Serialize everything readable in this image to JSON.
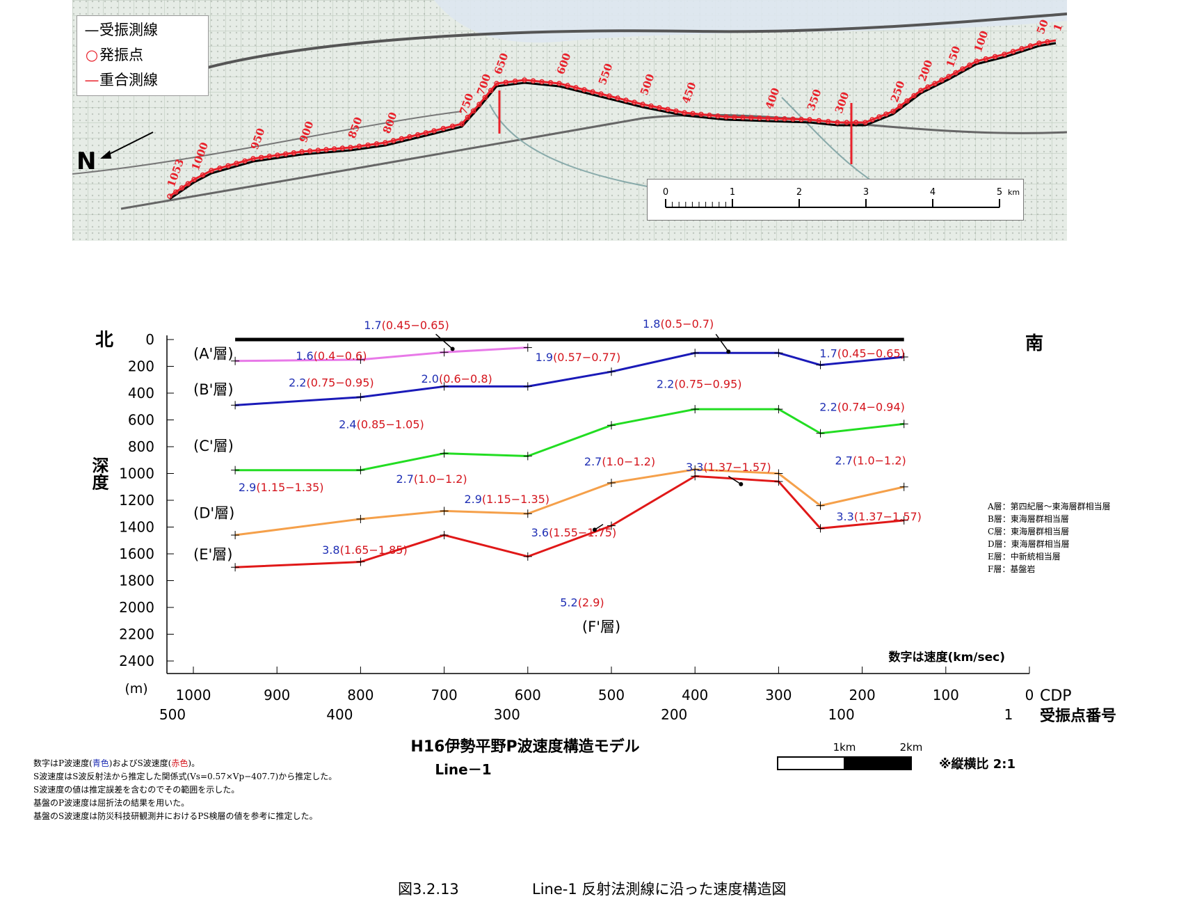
{
  "map": {
    "legend": [
      {
        "symbol": "—",
        "symbol_color": "#000000",
        "label": "受振測線"
      },
      {
        "symbol": "○",
        "symbol_color": "#e8202a",
        "label": "発振点"
      },
      {
        "symbol": "—",
        "symbol_color": "#e8202a",
        "label": "重合測線"
      }
    ],
    "north_label": "N",
    "scale": {
      "ticks": [
        "0",
        "1",
        "2",
        "3",
        "4",
        "5"
      ],
      "unit": "km"
    },
    "cdp_labels": [
      "1053",
      "1000",
      "950",
      "900",
      "850",
      "800",
      "750",
      "700",
      "650",
      "600",
      "550",
      "500",
      "450",
      "400",
      "350",
      "300",
      "250",
      "200",
      "150",
      "100",
      "50",
      "1"
    ]
  },
  "chart_data": {
    "type": "line",
    "title": "H16伊勢平野P波速度構造モデル",
    "subtitle": "Line－1",
    "ylabel": "深度",
    "yunit": "(m)",
    "ylim": [
      0,
      2400
    ],
    "yticks": [
      "0",
      "200",
      "400",
      "600",
      "800",
      "1000",
      "1200",
      "1400",
      "1600",
      "1800",
      "2000",
      "2200",
      "2400"
    ],
    "xlim": [
      1000,
      0
    ],
    "xticks": [
      "1000",
      "900",
      "800",
      "700",
      "600",
      "500",
      "400",
      "300",
      "200",
      "100",
      "0"
    ],
    "xlabel": "CDP",
    "x2ticks": [
      {
        "cdp": 1000,
        "label": "500"
      },
      {
        "cdp": 800,
        "label": "400"
      },
      {
        "cdp": 600,
        "label": "300"
      },
      {
        "cdp": 400,
        "label": "200"
      },
      {
        "cdp": 200,
        "label": "100"
      },
      {
        "cdp": 0,
        "label": "1"
      }
    ],
    "x2label": "受振点番号",
    "north_label": "北",
    "south_label": "南",
    "surface": {
      "x": [
        950,
        150
      ],
      "y": [
        0,
        0
      ],
      "color": "#000000"
    },
    "series": [
      {
        "name": "(A'層)",
        "color": "#e879e8",
        "x": [
          950,
          800,
          700,
          600
        ],
        "y": [
          160,
          150,
          95,
          60
        ]
      },
      {
        "name": "(B'層)",
        "color": "#1a1ab8",
        "x": [
          950,
          800,
          700,
          600,
          500,
          400,
          300,
          250,
          150
        ],
        "y": [
          490,
          430,
          350,
          350,
          240,
          100,
          100,
          190,
          130
        ]
      },
      {
        "name": "(C'層)",
        "color": "#22dd22",
        "x": [
          950,
          800,
          700,
          600,
          500,
          400,
          300,
          250,
          150
        ],
        "y": [
          975,
          975,
          850,
          870,
          640,
          520,
          520,
          700,
          630
        ]
      },
      {
        "name": "(D'層)",
        "color": "#f5a04a",
        "x": [
          950,
          800,
          700,
          600,
          500,
          400,
          300,
          250,
          150
        ],
        "y": [
          1460,
          1340,
          1280,
          1300,
          1070,
          970,
          1000,
          1240,
          1100
        ]
      },
      {
        "name": "(E'層)",
        "color": "#e01818",
        "x": [
          950,
          800,
          700,
          600,
          500,
          400,
          300,
          250,
          150
        ],
        "y": [
          1700,
          1660,
          1460,
          1620,
          1390,
          1020,
          1060,
          1410,
          1350
        ]
      }
    ],
    "layer_labels": [
      {
        "text": "(A'層)",
        "x": 1000,
        "y": 100
      },
      {
        "text": "(B'層)",
        "x": 1000,
        "y": 370
      },
      {
        "text": "(C'層)",
        "x": 1000,
        "y": 790
      },
      {
        "text": "(D'層)",
        "x": 1000,
        "y": 1290
      },
      {
        "text": "(E'層)",
        "x": 1000,
        "y": 1600
      },
      {
        "text": "(F'層)",
        "x": 535,
        "y": 2140
      }
    ],
    "velocity_labels": [
      {
        "vp": "1.7",
        "vs": "(0.45−0.65)",
        "x": 745,
        "y": -110
      },
      {
        "vp": "1.8",
        "vs": "(0.5−0.7)",
        "x": 420,
        "y": -120
      },
      {
        "vp": "1.6",
        "vs": "(0.4−0.6)",
        "x": 835,
        "y": 120
      },
      {
        "vp": "1.9",
        "vs": "(0.57−0.77)",
        "x": 540,
        "y": 130
      },
      {
        "vp": "1.7",
        "vs": "(0.45−0.65)",
        "x": 200,
        "y": 100
      },
      {
        "vp": "2.2",
        "vs": "(0.75−0.95)",
        "x": 835,
        "y": 320
      },
      {
        "vp": "2.0",
        "vs": "(0.6−0.8)",
        "x": 685,
        "y": 290
      },
      {
        "vp": "2.2",
        "vs": "(0.75−0.95)",
        "x": 395,
        "y": 330
      },
      {
        "vp": "2.2",
        "vs": "(0.74−0.94)",
        "x": 200,
        "y": 500
      },
      {
        "vp": "2.4",
        "vs": "(0.85−1.05)",
        "x": 775,
        "y": 630
      },
      {
        "vp": "2.7",
        "vs": "(1.0−1.2)",
        "x": 490,
        "y": 910
      },
      {
        "vp": "2.7",
        "vs": "(1.0−1.2)",
        "x": 715,
        "y": 1040
      },
      {
        "vp": "2.9",
        "vs": "(1.15−1.35)",
        "x": 895,
        "y": 1100
      },
      {
        "vp": "3.3",
        "vs": "(1.37−1.57)",
        "x": 360,
        "y": 950
      },
      {
        "vp": "2.7",
        "vs": "(1.0−1.2)",
        "x": 190,
        "y": 900
      },
      {
        "vp": "2.9",
        "vs": "(1.15−1.35)",
        "x": 625,
        "y": 1190
      },
      {
        "vp": "3.6",
        "vs": "(1.55−1.75)",
        "x": 545,
        "y": 1440
      },
      {
        "vp": "3.3",
        "vs": "(1.37−1.57)",
        "x": 180,
        "y": 1320
      },
      {
        "vp": "3.8",
        "vs": "(1.65−1.85)",
        "x": 795,
        "y": 1570
      },
      {
        "vp": "5.2",
        "vs": "(2.9)",
        "x": 535,
        "y": 1960
      }
    ],
    "unit_note": "数字は速度(km/sec)",
    "layer_key": [
      "A層：第四紀層～東海層群相当層",
      "B層：東海層群相当層",
      "C層：東海層群相当層",
      "D層：東海層群相当層",
      "E層：中新統相当層",
      "F層：基盤岩"
    ],
    "scale_bar": {
      "labels": [
        "1km",
        "2km"
      ],
      "ratio": "※縦横比 2:1"
    }
  },
  "notes": {
    "line1": {
      "a": "数字はP波速度(",
      "b": "青色",
      "c": ")およびS波速度(",
      "d": "赤色",
      "e": ")。"
    },
    "line2": "S波速度はS波反射法から推定した関係式(Vs=0.57×Vp−407.7)から推定した。",
    "line3": "S波速度の値は推定誤差を含むのでその範囲を示した。",
    "line4": "基盤のP波速度は屈折法の結果を用いた。",
    "line5": "基盤のS波速度は防災科技研観測井におけるPS検層の値を参考に推定した。"
  },
  "caption": {
    "number": "図3.2.13",
    "text": "Line-1 反射法測線に沿った速度構造図"
  },
  "colors": {
    "vp": "#1f2fb4",
    "vs": "#d4141c",
    "map_bg": "#e6ece6"
  }
}
